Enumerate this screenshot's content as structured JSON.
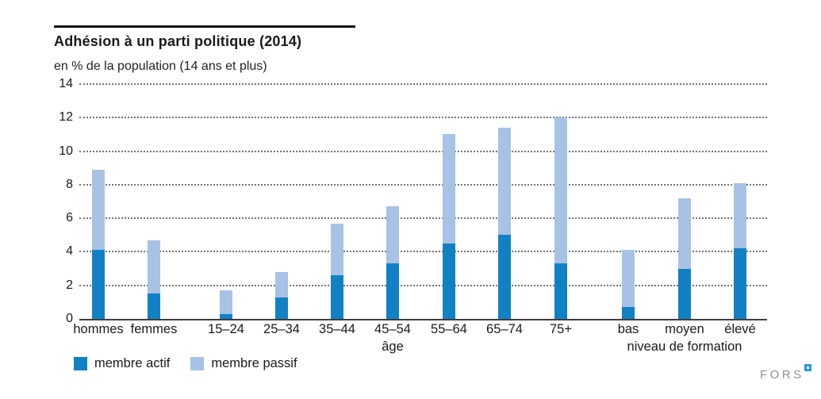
{
  "header": {
    "title": "Adhésion à un parti politique (2014)",
    "subtitle": "en % de la population (14 ans et plus)"
  },
  "chart_data": {
    "type": "bar",
    "variant": "stacked-vertical",
    "title": "Adhésion à un parti politique (2014)",
    "subtitle": "en % de la population (14 ans et plus)",
    "unit": "% de la population",
    "ylim": [
      0,
      14
    ],
    "yticks": [
      0,
      2,
      4,
      6,
      8,
      10,
      12,
      14
    ],
    "grid": "horizontal dotted",
    "legend_position": "bottom-left",
    "series_names": [
      "membre actif",
      "membre passif"
    ],
    "categories": [
      "hommes",
      "femmes",
      "15–24",
      "25–34",
      "35–44",
      "45–54",
      "55–64",
      "65–74",
      "75+",
      "bas",
      "moyen",
      "élevé"
    ],
    "series": [
      {
        "name": "membre actif",
        "values": [
          4.1,
          1.5,
          0.3,
          1.3,
          2.6,
          3.3,
          4.5,
          5.0,
          3.3,
          0.7,
          3.0,
          4.2
        ]
      },
      {
        "name": "membre passif",
        "values": [
          4.8,
          3.2,
          1.4,
          1.5,
          3.1,
          3.4,
          6.5,
          6.4,
          8.7,
          3.4,
          4.2,
          3.9
        ]
      }
    ],
    "totals": [
      8.9,
      4.7,
      1.7,
      2.8,
      5.7,
      6.7,
      11.0,
      11.4,
      12.0,
      4.1,
      7.2,
      8.1
    ],
    "group_axis_labels": [
      {
        "text": "âge",
        "anchor_category": "45–54"
      },
      {
        "text": "niveau de formation",
        "anchor_category": "moyen"
      }
    ],
    "colors": {
      "actif": "#1181c4",
      "passif": "#a7c2e4",
      "axis": "#3f3f3f",
      "grid": "#747474"
    }
  },
  "legend": {
    "items": [
      {
        "label": "membre actif",
        "color": "#1181c4"
      },
      {
        "label": "membre passif",
        "color": "#a7c2e4"
      }
    ]
  },
  "footer": {
    "logo_text": "FORS",
    "logo_mark_color": "#2b99d9"
  }
}
